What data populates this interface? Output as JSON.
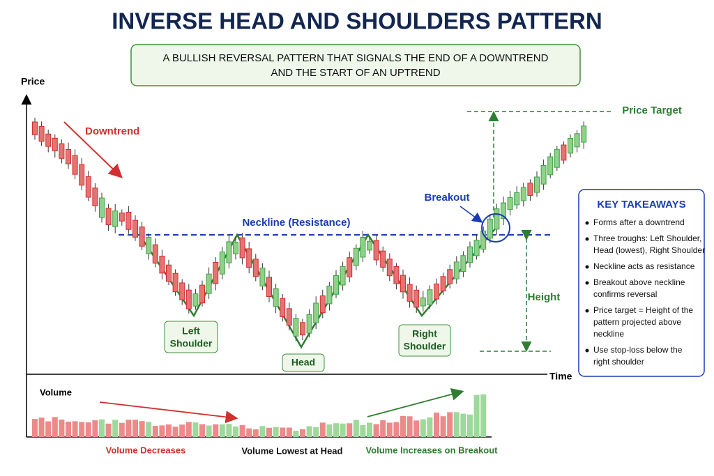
{
  "header": {
    "title": "INVERSE HEAD AND SHOULDERS PATTERN",
    "subtitle": [
      "A BULLISH REVERSAL PATTERN THAT SIGNALS THE END OF A DOWNTREND",
      "AND THE START OF AN UPTREND"
    ]
  },
  "axes": {
    "y_label": "Price",
    "x_label": "Time",
    "volume_label": "Volume"
  },
  "annotations": {
    "downtrend": "Downtrend",
    "neckline": "Neckline (Resistance)",
    "breakout": "Breakout",
    "price_target": "Price Target",
    "height": "Height",
    "left_shoulder": [
      "Left",
      "Shoulder"
    ],
    "head": "Head",
    "right_shoulder": [
      "Right",
      "Shoulder"
    ]
  },
  "volume_notes": {
    "decreases": "Volume Decreases",
    "lowest": "Volume Lowest at Head",
    "increases": "Volume Increases on Breakout"
  },
  "takeaways": {
    "title": "KEY TAKEAWAYS",
    "items": [
      [
        "Forms after a downtrend"
      ],
      [
        "Three troughs: Left Shoulder,",
        "Head (lowest), Right Shoulder"
      ],
      [
        "Neckline acts as resistance"
      ],
      [
        "Breakout above neckline",
        "confirms reversal"
      ],
      [
        "Price target = Height of the",
        "pattern projected above",
        "neckline"
      ],
      [
        "Use stop-loss below the",
        "right shoulder"
      ]
    ]
  }
}
